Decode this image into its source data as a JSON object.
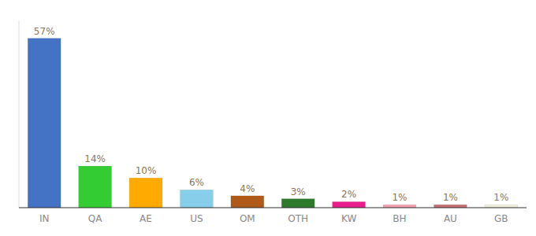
{
  "chart_data": {
    "type": "bar",
    "categories": [
      "IN",
      "QA",
      "AE",
      "US",
      "OM",
      "OTH",
      "KW",
      "BH",
      "AU",
      "GB"
    ],
    "values": [
      57,
      14,
      10,
      6,
      4,
      3,
      2,
      1,
      1,
      1
    ],
    "value_labels": [
      "57%",
      "14%",
      "10%",
      "6%",
      "4%",
      "3%",
      "2%",
      "1%",
      "1%",
      "1%"
    ],
    "colors": [
      "#4472c4",
      "#33cc33",
      "#ffaa00",
      "#87ceeb",
      "#b05a1a",
      "#2d7a2d",
      "#e91e8c",
      "#f4a0b0",
      "#c87070",
      "#f0eedc"
    ],
    "ylim": [
      0,
      63
    ],
    "data_labels": true,
    "tick_labels": "x",
    "grid": false
  }
}
